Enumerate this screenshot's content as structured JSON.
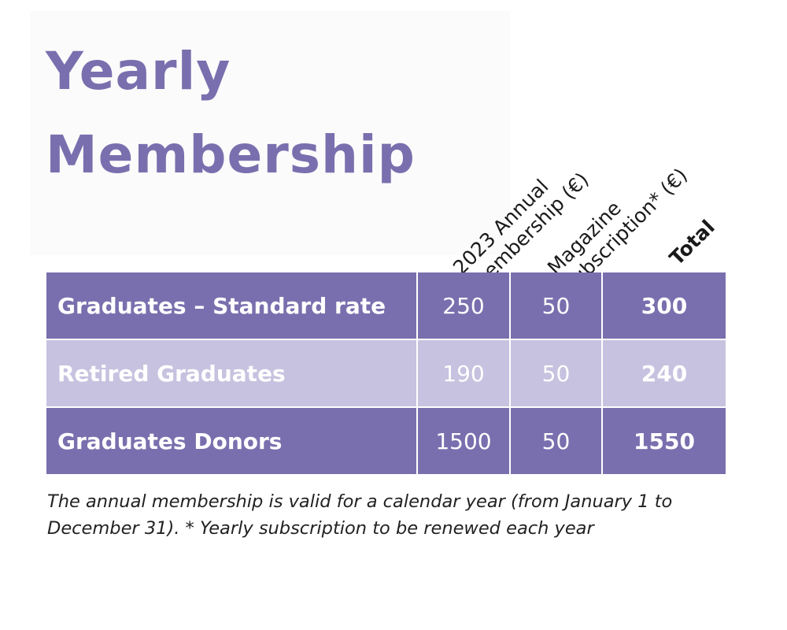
{
  "title": {
    "line1": "Yearly",
    "line2": "Membership"
  },
  "columns": {
    "annual": {
      "line1": "2023 Annual",
      "line2": "membership (€)"
    },
    "magazine": {
      "line1": "Magazine",
      "line2": "subscription* (€)"
    },
    "total": {
      "line1": "Total"
    }
  },
  "rows": [
    {
      "label": "Graduates – Standard rate",
      "annual": "250",
      "magazine": "50",
      "total": "300"
    },
    {
      "label": "Retired Graduates",
      "annual": "190",
      "magazine": "50",
      "total": "240"
    },
    {
      "label": "Graduates Donors",
      "annual": "1500",
      "magazine": "50",
      "total": "1550"
    }
  ],
  "footnote": "The annual membership is valid for a calendar year (from January 1 to December 31). * Yearly subscription to be renewed each year",
  "colors": {
    "accent": "#7a6fae",
    "row_light": "#c6c2df",
    "cell_text": "#ffffff"
  }
}
